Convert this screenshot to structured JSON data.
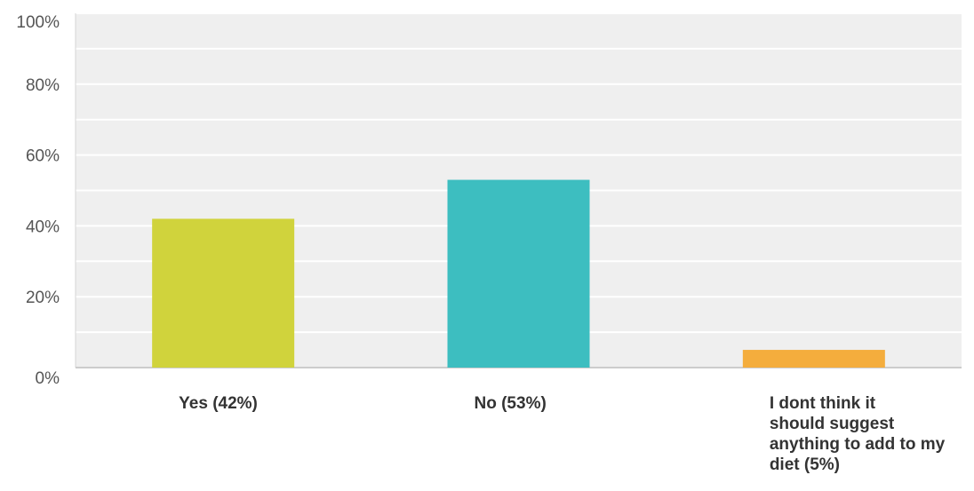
{
  "chart_data": {
    "type": "bar",
    "categories": [
      "Yes (42%)",
      "No (53%)",
      "I dont think it should suggest anything to add to my diet (5%)"
    ],
    "category_lines": [
      [
        "Yes (42%)"
      ],
      [
        "No (53%)"
      ],
      [
        "I dont think it",
        "should suggest",
        "anything to add to my",
        "diet (5%)"
      ]
    ],
    "values": [
      42,
      53,
      5
    ],
    "bar_colors": [
      "#d0d33c",
      "#3dbec0",
      "#f4ad3d"
    ],
    "ylim": [
      0,
      100
    ],
    "y_ticks": [
      0,
      20,
      40,
      60,
      80,
      100
    ],
    "y_tick_labels": [
      "0%",
      "20%",
      "40%",
      "60%",
      "80%",
      "100%"
    ],
    "grid": true,
    "plot_background": "#efefef",
    "title": "",
    "xlabel": "",
    "ylabel": ""
  }
}
